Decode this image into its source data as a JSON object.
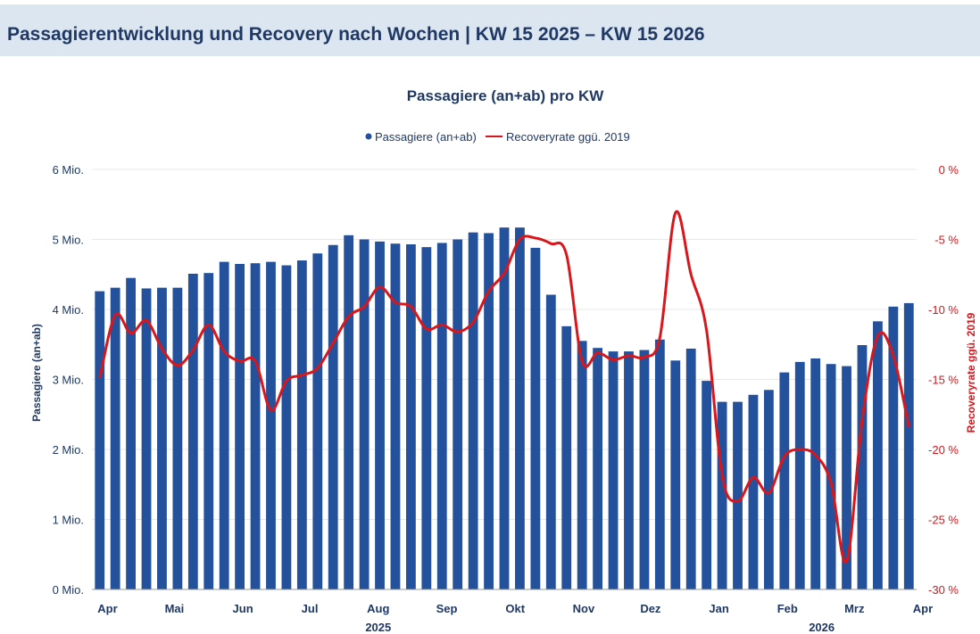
{
  "header": {
    "title": "Passagierentwicklung und Recovery nach Wochen | KW 15 2025 – KW 15 2026"
  },
  "colors": {
    "bars": "#24519b",
    "line": "#d8161b",
    "text": "#1f3864",
    "header_bg": "#dce6f1"
  },
  "chart_data": {
    "type": "bar+line",
    "title": "Passagiere (an+ab) pro KW",
    "legend": [
      "Passagiere (an+ab)",
      "Recoveryrate ggü. 2019"
    ],
    "ylabel": "Passagiere (an+ab)",
    "y2label": "Recoveryrate ggü. 2019",
    "ylim": [
      0,
      6000000
    ],
    "y2lim": [
      -30,
      0
    ],
    "yticks": [
      "0 Mio.",
      "1 Mio.",
      "2 Mio.",
      "3 Mio.",
      "4 Mio.",
      "5 Mio.",
      "6 Mio."
    ],
    "y2ticks": [
      "-30 %",
      "-25 %",
      "-20 %",
      "-15 %",
      "-10 %",
      "-5 %",
      "0 %"
    ],
    "months": [
      {
        "label": "Apr",
        "week": 1.5
      },
      {
        "label": "Mai",
        "week": 5.8
      },
      {
        "label": "Jun",
        "week": 10.2
      },
      {
        "label": "Jul",
        "week": 14.5
      },
      {
        "label": "Aug",
        "week": 18.9
      },
      {
        "label": "Sep",
        "week": 23.3
      },
      {
        "label": "Okt",
        "week": 27.7
      },
      {
        "label": "Nov",
        "week": 32.1
      },
      {
        "label": "Dez",
        "week": 36.4
      },
      {
        "label": "Jan",
        "week": 40.8
      },
      {
        "label": "Feb",
        "week": 45.2
      },
      {
        "label": "Mrz",
        "week": 49.5
      },
      {
        "label": "Apr",
        "week": 53.9
      }
    ],
    "years": [
      {
        "label": "2025",
        "week": 18.9
      },
      {
        "label": "2026",
        "week": 47.4
      }
    ],
    "passagiere": [
      4260000,
      4310000,
      4450000,
      4300000,
      4310000,
      4310000,
      4510000,
      4520000,
      4680000,
      4650000,
      4660000,
      4680000,
      4630000,
      4700000,
      4800000,
      4920000,
      5060000,
      5000000,
      4970000,
      4940000,
      4930000,
      4890000,
      4950000,
      5000000,
      5100000,
      5090000,
      5170000,
      5170000,
      4880000,
      4210000,
      3760000,
      3550000,
      3450000,
      3400000,
      3400000,
      3420000,
      3570000,
      3270000,
      3440000,
      2980000,
      2680000,
      2680000,
      2780000,
      2850000,
      3100000,
      3250000,
      3300000,
      3220000,
      3190000,
      3490000,
      3830000,
      4040000,
      4090000
    ],
    "recoveryrate": [
      -14.9,
      -10.4,
      -11.7,
      -10.8,
      -12.8,
      -14,
      -12.9,
      -11.1,
      -13,
      -13.7,
      -13.7,
      -17.2,
      -15.1,
      -14.7,
      -14.2,
      -12.4,
      -10.5,
      -9.8,
      -8.4,
      -9.5,
      -9.8,
      -11.4,
      -11.1,
      -11.6,
      -10.9,
      -8.7,
      -7.4,
      -5,
      -4.9,
      -5.3,
      -6.1,
      -13.7,
      -13.1,
      -13.6,
      -13.3,
      -13.4,
      -12,
      -3.1,
      -7.5,
      -11.5,
      -21.9,
      -23.7,
      -22,
      -23.1,
      -20.5,
      -20,
      -20.4,
      -22.4,
      -28,
      -17.9,
      -11.9,
      -13.3,
      -18.4
    ]
  }
}
